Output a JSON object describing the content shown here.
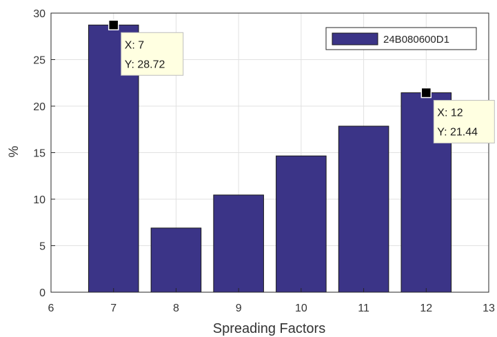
{
  "chart_data": {
    "type": "bar",
    "title": "",
    "xlabel": "Spreading Factors",
    "ylabel": "%",
    "x": [
      7,
      8,
      9,
      10,
      11,
      12
    ],
    "series": [
      {
        "name": "24B080600D1",
        "values": [
          28.72,
          6.9,
          10.45,
          14.65,
          17.85,
          21.44
        ],
        "color": "#3b3487"
      }
    ],
    "xlim": [
      6,
      13
    ],
    "ylim": [
      0,
      30
    ],
    "xticks": [
      "6",
      "7",
      "8",
      "9",
      "10",
      "11",
      "12",
      "13"
    ],
    "yticks": [
      "0",
      "5",
      "10",
      "15",
      "20",
      "25",
      "30"
    ],
    "grid": true,
    "legend_position": "top-right",
    "datatips": [
      {
        "x_text": "X: 7",
        "y_text": "Y: 28.72",
        "x": 7,
        "y": 28.72
      },
      {
        "x_text": "X: 12",
        "y_text": "Y: 21.44",
        "x": 12,
        "y": 21.44
      }
    ]
  }
}
